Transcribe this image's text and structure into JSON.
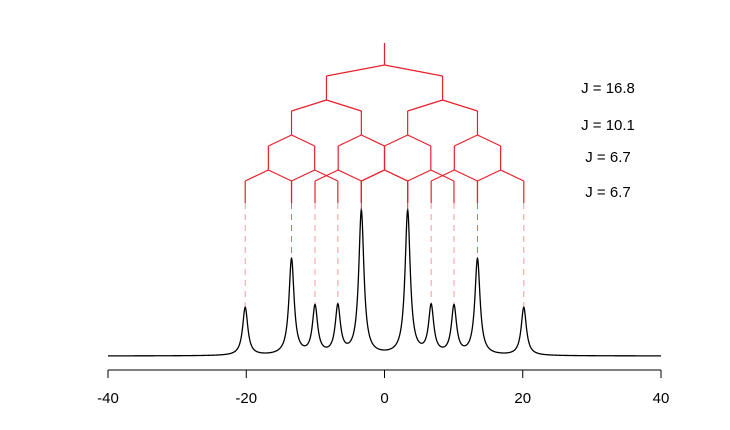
{
  "chart_data": {
    "type": "splitting-tree",
    "center": 0,
    "values": [
      16.8,
      10.1,
      6.7,
      6.7
    ],
    "value_labels": [
      "J = 16.8",
      "J = 10.1",
      "J = 6.7",
      "J = 6.7"
    ],
    "tree_color": "#e8202a",
    "line_color": "#000000",
    "xlim": [
      -40,
      40
    ],
    "xticks": [
      -40,
      -20,
      0,
      20,
      40
    ]
  }
}
